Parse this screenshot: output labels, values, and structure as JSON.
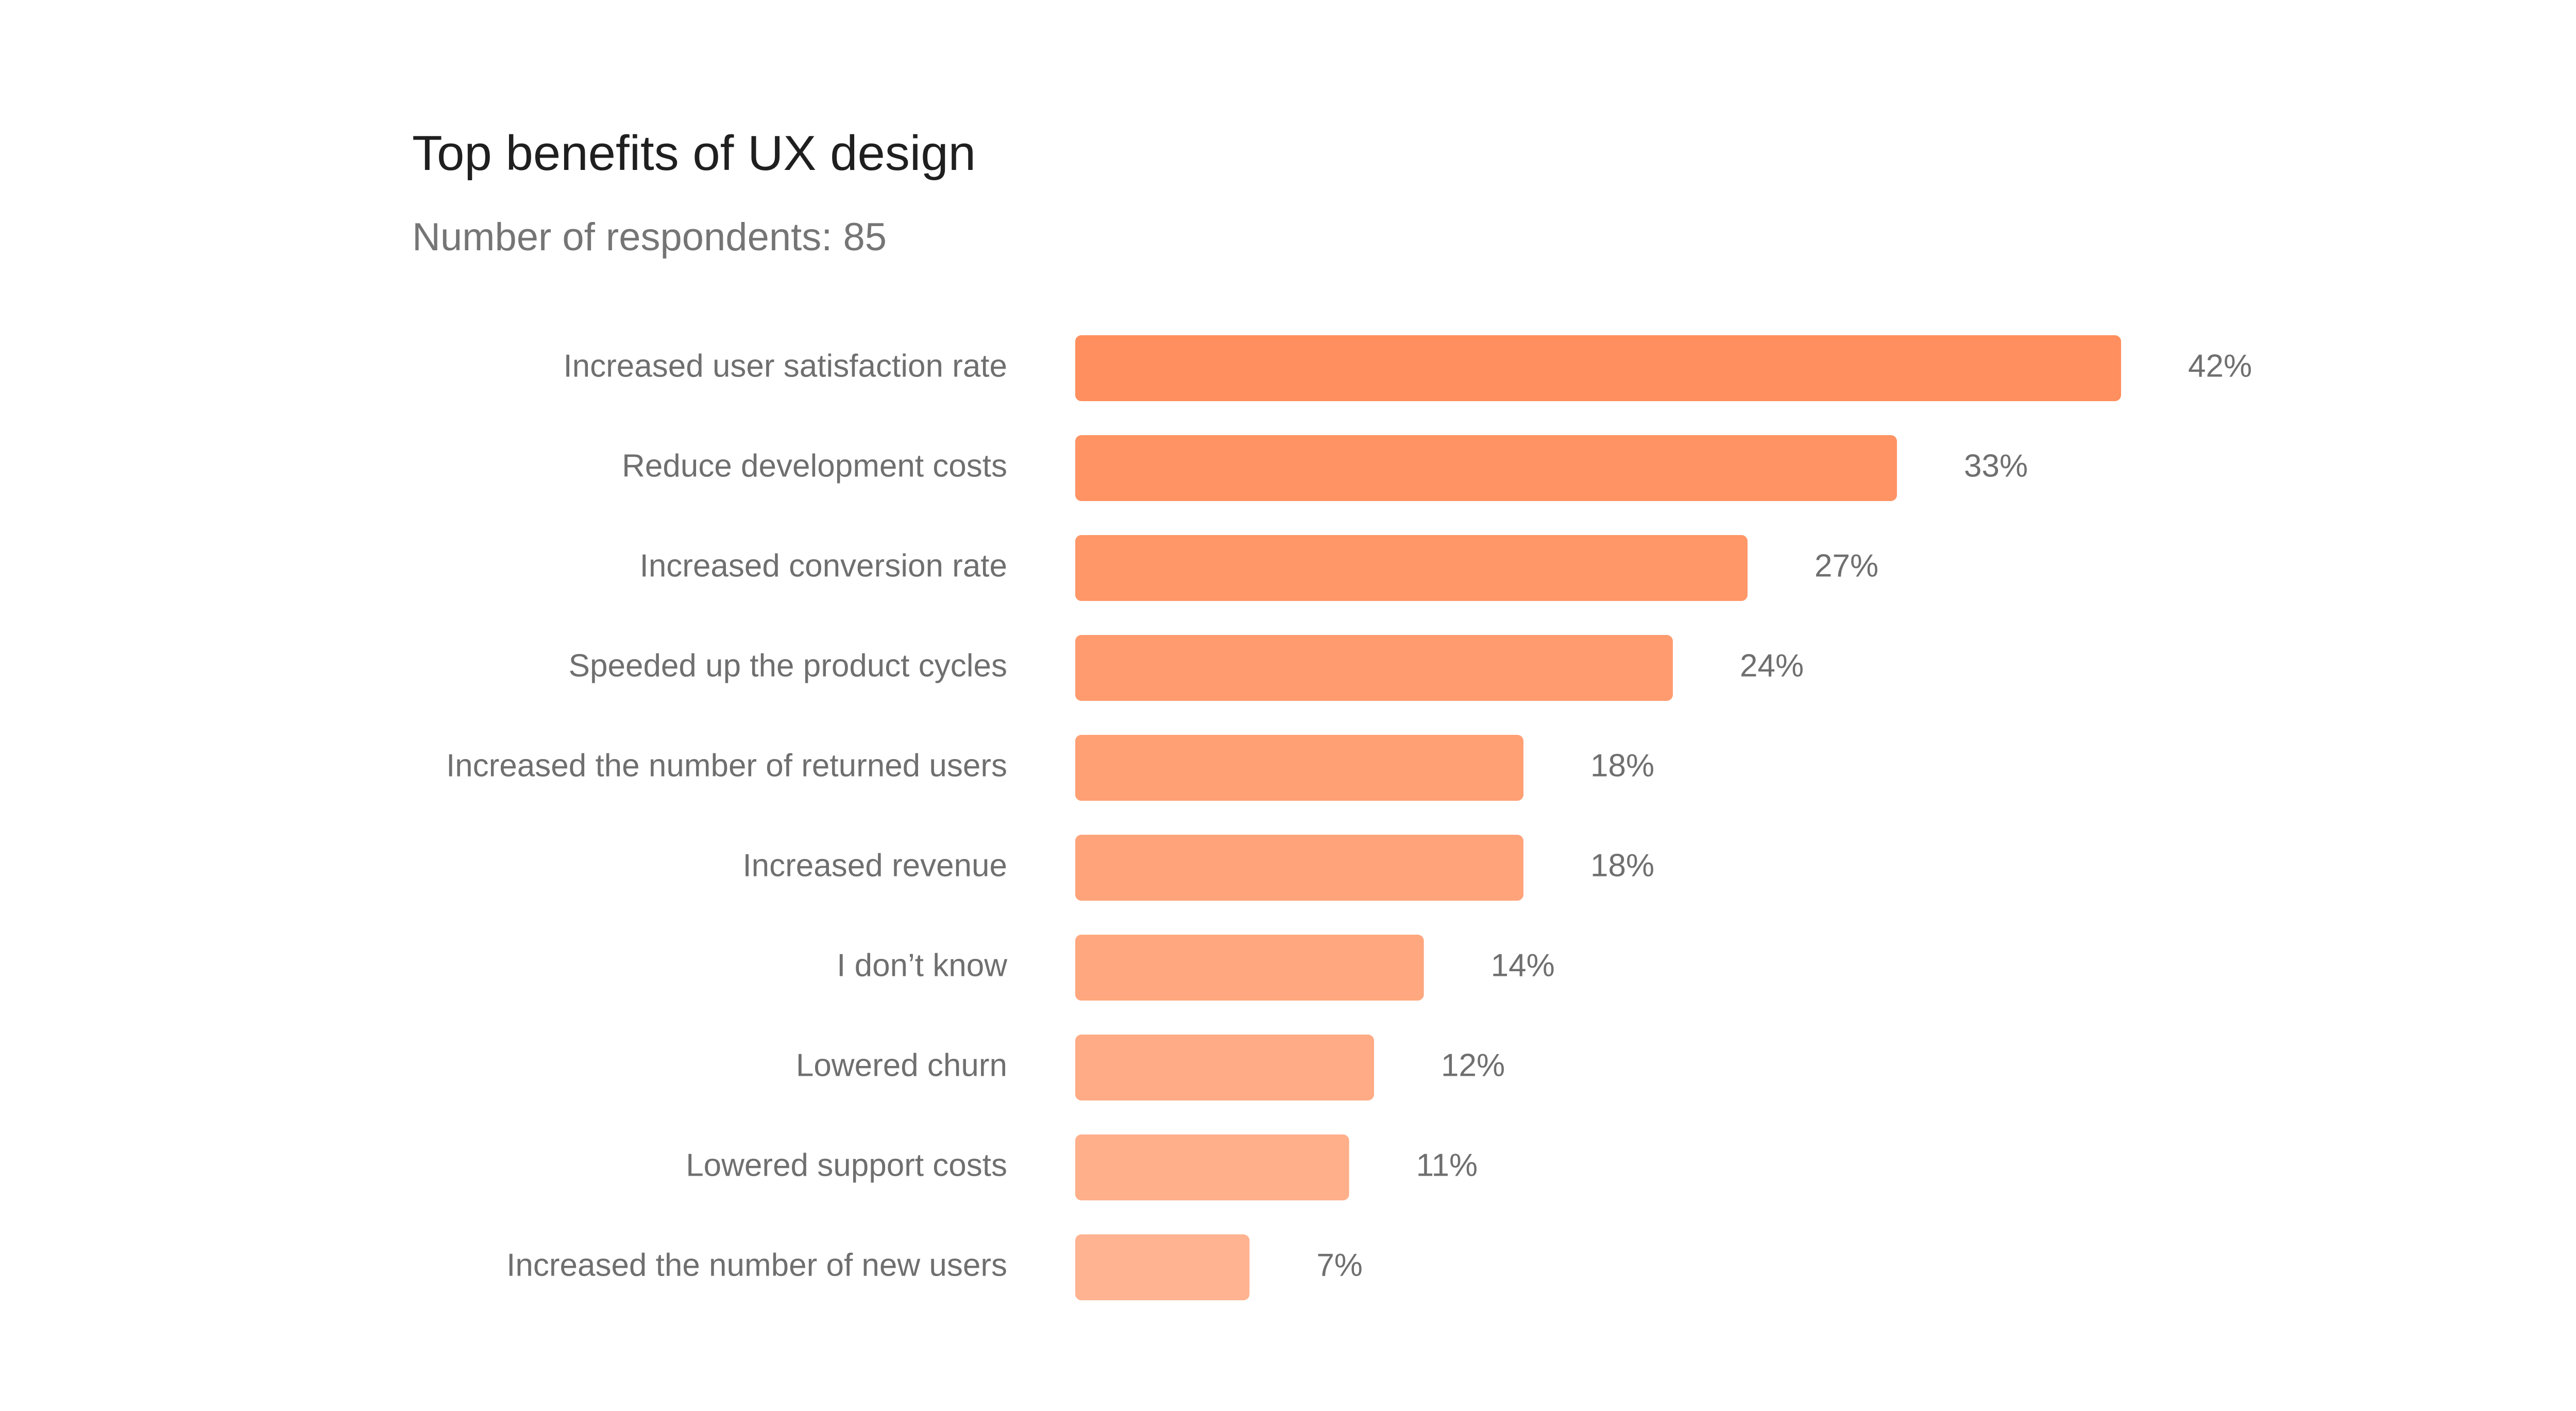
{
  "chart_data": {
    "type": "bar",
    "orientation": "horizontal",
    "title": "Top benefits of UX design",
    "subtitle": "Number of respondents: 85",
    "categories": [
      "Increased user satisfaction rate",
      "Reduce development costs",
      "Increased conversion rate",
      "Speeded up the product cycles",
      "Increased the number of returned users",
      "Increased revenue",
      "I don’t know",
      "Lowered churn",
      "Lowered support costs",
      "Increased the number of new users"
    ],
    "values": [
      42,
      33,
      27,
      24,
      18,
      18,
      14,
      12,
      11,
      7
    ],
    "value_labels": [
      "42%",
      "33%",
      "27%",
      "24%",
      "18%",
      "18%",
      "14%",
      "12%",
      "11%",
      "7%"
    ],
    "unit": "%",
    "xlim": [
      0,
      42
    ],
    "grid": false,
    "legend": "none",
    "colors": {
      "bar_top": "#ff8f5e",
      "bar_bottom": "#ffb390"
    }
  }
}
